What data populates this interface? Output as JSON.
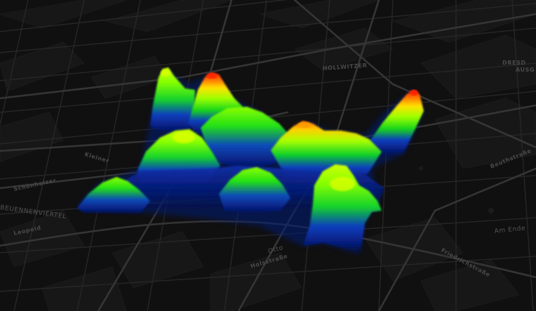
{
  "map": {
    "background_color": "#101010",
    "road_color": "#2b2b2b",
    "major_road_color": "#3a3a3a",
    "block_color": "#181818",
    "label_color": "#4d4d4d"
  },
  "labels": {
    "hollwitzer": "HOLLWITZER",
    "dresden": "DRESD",
    "ausgang": "AUSG",
    "beuennen": "BEUENNENVIERTEL",
    "otto": "Otto",
    "holsstrasse": "Holsstraße",
    "am_ende": "Am Ende",
    "friedrich": "Friedrichstraße",
    "schonholzer": "Schönholzer",
    "kleiner": "Kleiner",
    "leopold": "Leopold",
    "beuthstr": "Beuthstraße"
  },
  "heatmap": {
    "colormap": [
      "#00008b",
      "#0000ff",
      "#00c0ff",
      "#00ff60",
      "#c0ff00",
      "#ffff00",
      "#ff8000",
      "#ff0000"
    ],
    "peaks": [
      {
        "name": "peak-northwest-left",
        "level": 0.78
      },
      {
        "name": "peak-northwest-right",
        "level": 0.95
      },
      {
        "name": "peak-north-center",
        "level": 0.62
      },
      {
        "name": "peak-center-orange",
        "level": 0.88
      },
      {
        "name": "peak-east-red",
        "level": 1.0
      },
      {
        "name": "peak-west-dome",
        "level": 0.68
      },
      {
        "name": "peak-southwest",
        "level": 0.55
      },
      {
        "name": "peak-south-center",
        "level": 0.5
      },
      {
        "name": "peak-southeast-ridge",
        "level": 0.72
      }
    ]
  }
}
